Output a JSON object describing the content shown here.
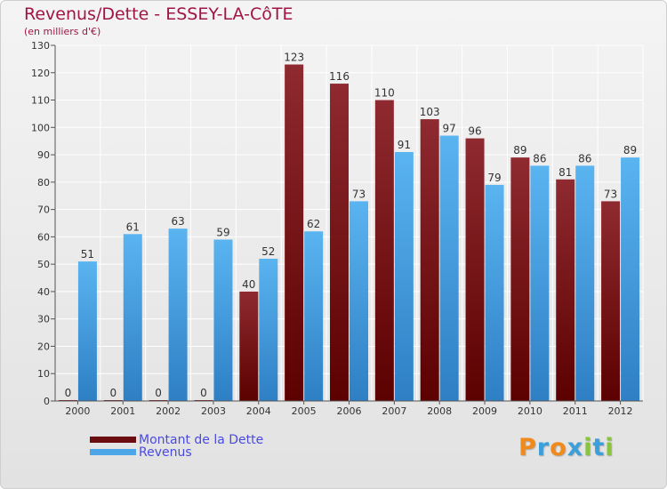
{
  "header": {
    "title": "Revenus/Dette - ESSEY-LA-CôTE",
    "subtitle": "(en milliers d'€)"
  },
  "chart_data": {
    "type": "bar",
    "categories": [
      "2000",
      "2001",
      "2002",
      "2003",
      "2004",
      "2005",
      "2006",
      "2007",
      "2008",
      "2009",
      "2010",
      "2011",
      "2012"
    ],
    "series": [
      {
        "name": "Montant de la Dette",
        "values": [
          0,
          0,
          0,
          0,
          40,
          123,
          116,
          110,
          103,
          96,
          89,
          81,
          73
        ],
        "color": "#7a1418"
      },
      {
        "name": "Revenus",
        "values": [
          51,
          61,
          63,
          59,
          52,
          62,
          73,
          91,
          97,
          79,
          86,
          86,
          89
        ],
        "color": "#4da6e8"
      }
    ],
    "ylim": [
      0,
      130
    ],
    "yticks": [
      0,
      10,
      20,
      30,
      40,
      50,
      60,
      70,
      80,
      90,
      100,
      110,
      120,
      130
    ],
    "grid": true,
    "legend_position": "bottom-left"
  },
  "legend": {
    "items": [
      {
        "label": "Montant de la Dette",
        "color": "#6b0d10"
      },
      {
        "label": "Revenus",
        "color": "#4da6e8"
      }
    ]
  },
  "logo": {
    "text": "Proxiti",
    "letter_colors": [
      "#f08a1c",
      "#3aa0dc",
      "#f08a1c",
      "#3aa0dc",
      "#8ac43f",
      "#3aa0dc",
      "#8ac43f"
    ]
  }
}
